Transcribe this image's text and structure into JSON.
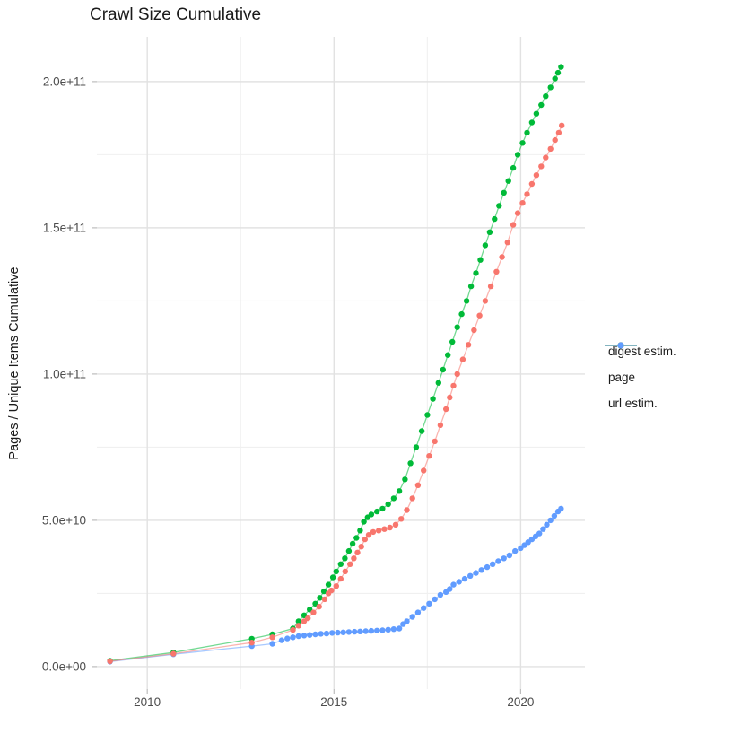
{
  "chart_data": {
    "type": "scatter",
    "title": "Crawl Size Cumulative",
    "xlabel": "",
    "ylabel": "Pages / Unique Items Cumulative",
    "y_unit_multiplier": 1000000000,
    "note": "all y values below are in units of 1e9 (billions)",
    "xlim": [
      2008.65,
      2021.72
    ],
    "ylim_e9": [
      -7.7,
      215.3
    ],
    "grid": true,
    "legend_position": "right",
    "x_ticks": [
      {
        "label": "2010",
        "value": 2010
      },
      {
        "label": "2015",
        "value": 2015
      },
      {
        "label": "2020",
        "value": 2020
      }
    ],
    "x_minor": [
      2012.5,
      2017.5
    ],
    "y_ticks": [
      {
        "label": "0.0e+00",
        "value_e9": 0
      },
      {
        "label": "5.0e+10",
        "value_e9": 50
      },
      {
        "label": "1.0e+11",
        "value_e9": 100
      },
      {
        "label": "1.5e+11",
        "value_e9": 150
      },
      {
        "label": "2.0e+11",
        "value_e9": 200
      }
    ],
    "y_minor_e9": [
      25,
      75,
      125,
      175
    ],
    "series": [
      {
        "name": "digest estim.",
        "color": "#F8766D",
        "points_e9": [
          [
            2009.0,
            1.8
          ],
          [
            2010.7,
            4.4
          ],
          [
            2012.8,
            8.2
          ],
          [
            2013.35,
            10
          ],
          [
            2013.9,
            12.5
          ],
          [
            2014.05,
            14
          ],
          [
            2014.2,
            15.5
          ],
          [
            2014.3,
            16.5
          ],
          [
            2014.45,
            18.5
          ],
          [
            2014.6,
            20.5
          ],
          [
            2014.75,
            23
          ],
          [
            2014.85,
            25
          ],
          [
            2014.93,
            26
          ],
          [
            2015.06,
            27.5
          ],
          [
            2015.18,
            30
          ],
          [
            2015.3,
            32.5
          ],
          [
            2015.43,
            35
          ],
          [
            2015.53,
            37
          ],
          [
            2015.63,
            39
          ],
          [
            2015.73,
            41
          ],
          [
            2015.83,
            43.5
          ],
          [
            2015.93,
            45
          ],
          [
            2016.05,
            46
          ],
          [
            2016.2,
            46.5
          ],
          [
            2016.35,
            47
          ],
          [
            2016.5,
            47.5
          ],
          [
            2016.65,
            48.5
          ],
          [
            2016.8,
            50.5
          ],
          [
            2016.95,
            53.5
          ],
          [
            2017.1,
            57.5
          ],
          [
            2017.25,
            62
          ],
          [
            2017.4,
            67
          ],
          [
            2017.55,
            72
          ],
          [
            2017.7,
            77
          ],
          [
            2017.85,
            82.5
          ],
          [
            2018.0,
            88
          ],
          [
            2018.1,
            92
          ],
          [
            2018.2,
            96
          ],
          [
            2018.3,
            100
          ],
          [
            2018.45,
            105
          ],
          [
            2018.6,
            110
          ],
          [
            2018.75,
            115
          ],
          [
            2018.9,
            120
          ],
          [
            2019.05,
            125
          ],
          [
            2019.2,
            130
          ],
          [
            2019.35,
            135
          ],
          [
            2019.5,
            140
          ],
          [
            2019.65,
            145
          ],
          [
            2019.8,
            151
          ],
          [
            2019.92,
            155
          ],
          [
            2020.05,
            158.5
          ],
          [
            2020.17,
            161.5
          ],
          [
            2020.3,
            165
          ],
          [
            2020.42,
            168
          ],
          [
            2020.55,
            171
          ],
          [
            2020.67,
            174
          ],
          [
            2020.8,
            177
          ],
          [
            2020.92,
            180
          ],
          [
            2021.02,
            182.5
          ],
          [
            2021.1,
            185
          ]
        ]
      },
      {
        "name": "page",
        "color": "#00BA38",
        "points_e9": [
          [
            2009.0,
            2
          ],
          [
            2010.7,
            4.8
          ],
          [
            2012.8,
            9.5
          ],
          [
            2013.35,
            11
          ],
          [
            2013.9,
            13
          ],
          [
            2014.05,
            15.5
          ],
          [
            2014.2,
            17.5
          ],
          [
            2014.35,
            19.5
          ],
          [
            2014.5,
            21.5
          ],
          [
            2014.62,
            23.5
          ],
          [
            2014.73,
            25.7
          ],
          [
            2014.85,
            28
          ],
          [
            2014.97,
            30.5
          ],
          [
            2015.06,
            32.5
          ],
          [
            2015.18,
            35
          ],
          [
            2015.29,
            37
          ],
          [
            2015.4,
            39.5
          ],
          [
            2015.5,
            42
          ],
          [
            2015.6,
            44
          ],
          [
            2015.7,
            46.5
          ],
          [
            2015.8,
            49.5
          ],
          [
            2015.9,
            51
          ],
          [
            2016.0,
            52
          ],
          [
            2016.15,
            53
          ],
          [
            2016.3,
            54
          ],
          [
            2016.45,
            55.5
          ],
          [
            2016.6,
            57.5
          ],
          [
            2016.75,
            60
          ],
          [
            2016.9,
            64
          ],
          [
            2017.05,
            69.5
          ],
          [
            2017.2,
            75
          ],
          [
            2017.35,
            80.5
          ],
          [
            2017.5,
            86
          ],
          [
            2017.65,
            91.5
          ],
          [
            2017.8,
            97
          ],
          [
            2017.92,
            101.5
          ],
          [
            2018.05,
            106.5
          ],
          [
            2018.17,
            111
          ],
          [
            2018.3,
            116
          ],
          [
            2018.42,
            120.5
          ],
          [
            2018.55,
            125
          ],
          [
            2018.67,
            130
          ],
          [
            2018.8,
            134.5
          ],
          [
            2018.92,
            139
          ],
          [
            2019.05,
            144
          ],
          [
            2019.17,
            148.5
          ],
          [
            2019.3,
            153
          ],
          [
            2019.42,
            157.5
          ],
          [
            2019.55,
            162
          ],
          [
            2019.67,
            166
          ],
          [
            2019.8,
            170.5
          ],
          [
            2019.92,
            175
          ],
          [
            2020.05,
            179
          ],
          [
            2020.17,
            182.5
          ],
          [
            2020.3,
            186
          ],
          [
            2020.42,
            189
          ],
          [
            2020.55,
            192
          ],
          [
            2020.67,
            195
          ],
          [
            2020.8,
            198
          ],
          [
            2020.92,
            201
          ],
          [
            2021.0,
            203
          ],
          [
            2021.08,
            205
          ]
        ]
      },
      {
        "name": "url estim.",
        "color": "#619CFF",
        "points_e9": [
          [
            2009.0,
            1.7
          ],
          [
            2010.7,
            4.2
          ],
          [
            2012.8,
            7
          ],
          [
            2013.35,
            7.8
          ],
          [
            2013.6,
            9
          ],
          [
            2013.75,
            9.6
          ],
          [
            2013.9,
            10
          ],
          [
            2014.05,
            10.4
          ],
          [
            2014.2,
            10.6
          ],
          [
            2014.35,
            10.8
          ],
          [
            2014.5,
            11
          ],
          [
            2014.65,
            11.2
          ],
          [
            2014.8,
            11.3
          ],
          [
            2014.95,
            11.5
          ],
          [
            2015.1,
            11.6
          ],
          [
            2015.25,
            11.7
          ],
          [
            2015.4,
            11.8
          ],
          [
            2015.55,
            11.9
          ],
          [
            2015.7,
            12
          ],
          [
            2015.85,
            12.1
          ],
          [
            2016.0,
            12.2
          ],
          [
            2016.15,
            12.3
          ],
          [
            2016.3,
            12.4
          ],
          [
            2016.45,
            12.6
          ],
          [
            2016.6,
            12.8
          ],
          [
            2016.75,
            13
          ],
          [
            2016.85,
            14.5
          ],
          [
            2016.95,
            15.5
          ],
          [
            2017.1,
            17
          ],
          [
            2017.25,
            18.5
          ],
          [
            2017.4,
            20
          ],
          [
            2017.55,
            21.5
          ],
          [
            2017.7,
            23
          ],
          [
            2017.85,
            24.5
          ],
          [
            2018.0,
            25.5
          ],
          [
            2018.1,
            26.5
          ],
          [
            2018.2,
            28
          ],
          [
            2018.35,
            29
          ],
          [
            2018.5,
            30
          ],
          [
            2018.65,
            31
          ],
          [
            2018.8,
            32
          ],
          [
            2018.95,
            33
          ],
          [
            2019.1,
            34
          ],
          [
            2019.25,
            35
          ],
          [
            2019.4,
            36
          ],
          [
            2019.55,
            37
          ],
          [
            2019.7,
            38
          ],
          [
            2019.85,
            39.5
          ],
          [
            2020.0,
            40.5
          ],
          [
            2020.1,
            41.5
          ],
          [
            2020.2,
            42.5
          ],
          [
            2020.3,
            43.5
          ],
          [
            2020.4,
            44.5
          ],
          [
            2020.5,
            45.5
          ],
          [
            2020.6,
            47
          ],
          [
            2020.7,
            48.5
          ],
          [
            2020.8,
            50
          ],
          [
            2020.9,
            51.5
          ],
          [
            2021.0,
            53
          ],
          [
            2021.08,
            54
          ]
        ]
      }
    ]
  },
  "legend": {
    "items": [
      {
        "label": "digest estim.",
        "color": "#F8766D"
      },
      {
        "label": "page",
        "color": "#00BA38"
      },
      {
        "label": "url estim.",
        "color": "#619CFF"
      }
    ]
  },
  "colors": {
    "background": "#ffffff",
    "grid_major": "#e2e2e2",
    "grid_minor": "#f0f0f0",
    "tick_mark": "#bdbdbd",
    "tick_label": "#4d4d4d",
    "title": "#1a1a1a"
  }
}
